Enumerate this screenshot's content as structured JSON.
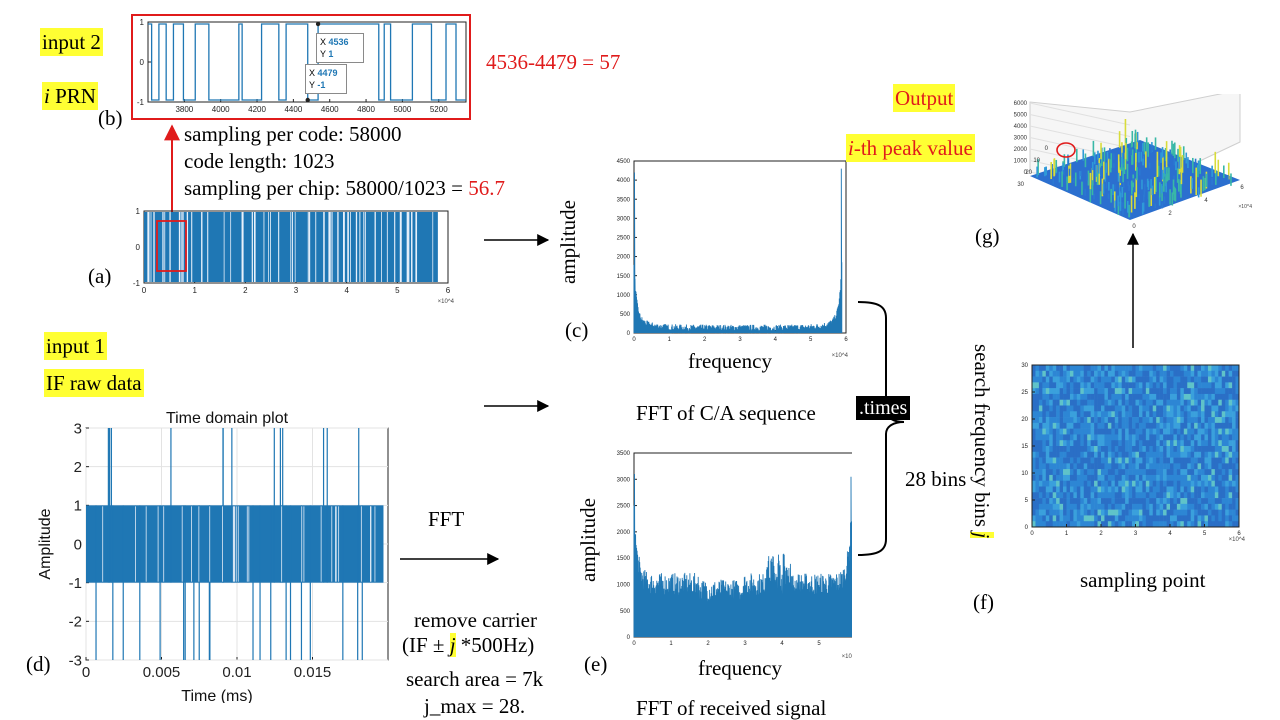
{
  "panels": {
    "a": "(a)",
    "b": "(b)",
    "c": "(c)",
    "d": "(d)",
    "e": "(e)",
    "f": "(f)",
    "g": "(g)"
  },
  "inputs": {
    "input2": "input 2",
    "prn_i": "i",
    "prn_rest": " PRN",
    "input1": "input 1",
    "if_raw": "IF raw data"
  },
  "annotations": {
    "diff": "4536-4479 = 57",
    "sampling_per_code": "sampling per code: 58000",
    "code_length": "code length: 1023",
    "sampling_per_chip_prefix": "sampling per chip: 58000/1023 = ",
    "sampling_per_chip_value": "56.7",
    "fft_label": "FFT",
    "remove_carrier": "remove carrier",
    "if_expr_pre": "(IF ± ",
    "if_expr_j": "j",
    "if_expr_post": " *500Hz)",
    "search_area": "search area = 7k",
    "jmax": "j_max = 28.",
    "times": ".times",
    "bins": "28 bins"
  },
  "output": {
    "label": "Output",
    "peak_i": "i",
    "peak_rest": "-th peak value"
  },
  "datatips": {
    "tip1": {
      "xlab": "X",
      "x": "4536",
      "ylab": "Y",
      "y": "1"
    },
    "tip2": {
      "xlab": "X",
      "x": "4479",
      "ylab": "Y",
      "y": "-1"
    }
  },
  "colors": {
    "trace": "#1f77b4",
    "red": "#e01b1b",
    "highlight": "#ffff33",
    "surface_low": "#2c7fd0",
    "surface_high": "#d9e033"
  },
  "chart_data": [
    {
      "id": "b",
      "type": "line",
      "title": "",
      "xlabel": "",
      "ylabel": "",
      "xlim": [
        3600,
        5350
      ],
      "ylim": [
        -1,
        1
      ],
      "xticks": [
        "3800",
        "4000",
        "4200",
        "4400",
        "4600",
        "4800",
        "5000",
        "5200"
      ],
      "yticks": [
        "-1",
        "0",
        "1"
      ],
      "transitions_x": [
        3620,
        3660,
        3700,
        3740,
        3795,
        3860,
        3935,
        4100,
        4118,
        4225,
        4320,
        4360,
        4479,
        4536,
        4870,
        4900,
        4935,
        5055,
        5160,
        5240,
        5295
      ]
    },
    {
      "id": "a",
      "type": "line",
      "title": "",
      "xlabel": "",
      "ylabel": "",
      "xlim": [
        0,
        6
      ],
      "x_exponent": "×10^4",
      "ylim": [
        -1,
        1
      ],
      "xticks": [
        "0",
        "1",
        "2",
        "3",
        "4",
        "5",
        "6"
      ],
      "yticks": [
        "-1",
        "0",
        "1"
      ],
      "signal_end_x": 5.8
    },
    {
      "id": "c",
      "type": "line",
      "title": "",
      "xlabel": "frequency",
      "ylabel": "amplitude",
      "caption": "FFT of C/A sequence",
      "xlim": [
        0,
        6
      ],
      "x_exponent": "×10^4",
      "ylim": [
        0,
        4500
      ],
      "xticks": [
        "0",
        "1",
        "2",
        "3",
        "4",
        "5",
        "6"
      ],
      "yticks": [
        "0",
        "500",
        "1000",
        "1500",
        "2000",
        "2500",
        "3000",
        "3500",
        "4000",
        "4500"
      ],
      "edge_peaks": [
        4200,
        4300
      ],
      "floor": 60
    },
    {
      "id": "d",
      "type": "line",
      "title": "Time domain plot",
      "xlabel": "Time (ms)",
      "ylabel": "Amplitude",
      "xlim": [
        0,
        0.02
      ],
      "ylim": [
        -3,
        3
      ],
      "xticks": [
        "0",
        "0.005",
        "0.01",
        "0.015"
      ],
      "yticks": [
        "-3",
        "-2",
        "-1",
        "0",
        "1",
        "2",
        "3"
      ],
      "levels": [
        -3,
        -1,
        1,
        3
      ]
    },
    {
      "id": "e",
      "type": "line",
      "title": "",
      "xlabel": "frequency",
      "ylabel": "amplitude",
      "caption": "FFT of received signal",
      "xlim": [
        0,
        6
      ],
      "x_exponent": "×10^4",
      "ylim": [
        0,
        3500
      ],
      "xticks": [
        "0",
        "1",
        "2",
        "3",
        "4",
        "5",
        "6"
      ],
      "yticks": [
        "0",
        "500",
        "1000",
        "1500",
        "2000",
        "2500",
        "3000",
        "3500"
      ],
      "edge_peaks": [
        3100,
        3050
      ],
      "floor": 800
    },
    {
      "id": "f",
      "type": "heatmap",
      "title": "",
      "xlabel": "sampling point",
      "ylabel_main": "search frequency bins ",
      "ylabel_j": "j",
      "xlim": [
        0,
        6
      ],
      "x_exponent": "×10^4",
      "ylim": [
        0,
        30
      ],
      "xticks": [
        "0",
        "1",
        "2",
        "3",
        "4",
        "5",
        "6"
      ],
      "yticks": [
        "0",
        "5",
        "10",
        "15",
        "20",
        "25",
        "30"
      ]
    },
    {
      "id": "g",
      "type": "surface",
      "title": "",
      "xlabel": "",
      "ylabel": "",
      "zlim": [
        0,
        6000
      ],
      "zticks": [
        "0",
        "1000",
        "2000",
        "3000",
        "4000",
        "5000",
        "6000"
      ],
      "xticks": [
        "0",
        "2",
        "4",
        "6"
      ],
      "x_exponent": "×10^4",
      "yticks": [
        "0",
        "10",
        "20",
        "30"
      ]
    }
  ]
}
